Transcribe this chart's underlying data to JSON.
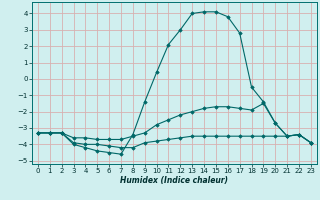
{
  "xlabel": "Humidex (Indice chaleur)",
  "background_color": "#d0efef",
  "grid_color": "#d8b0b0",
  "line_color": "#006868",
  "marker_color": "#006868",
  "xlim": [
    -0.5,
    23.5
  ],
  "ylim": [
    -5.2,
    4.7
  ],
  "xticks": [
    0,
    1,
    2,
    3,
    4,
    5,
    6,
    7,
    8,
    9,
    10,
    11,
    12,
    13,
    14,
    15,
    16,
    17,
    18,
    19,
    20,
    21,
    22,
    23
  ],
  "yticks": [
    -5,
    -4,
    -3,
    -2,
    -1,
    0,
    1,
    2,
    3,
    4
  ],
  "series": [
    {
      "x": [
        0,
        1,
        2,
        3,
        4,
        5,
        6,
        7,
        8,
        9,
        10,
        11,
        12,
        13,
        14,
        15,
        16,
        17,
        18,
        19,
        20,
        21,
        22,
        23
      ],
      "y": [
        -3.3,
        -3.3,
        -3.3,
        -4.0,
        -4.2,
        -4.4,
        -4.5,
        -4.6,
        -3.4,
        -1.4,
        0.4,
        2.1,
        3.0,
        4.0,
        4.1,
        4.1,
        3.8,
        2.8,
        -0.5,
        -1.4,
        -2.7,
        -3.5,
        -3.4,
        -3.9
      ]
    },
    {
      "x": [
        0,
        1,
        2,
        3,
        4,
        5,
        6,
        7,
        8,
        9,
        10,
        11,
        12,
        13,
        14,
        15,
        16,
        17,
        18,
        19,
        20,
        21,
        22,
        23
      ],
      "y": [
        -3.3,
        -3.3,
        -3.3,
        -3.6,
        -3.6,
        -3.7,
        -3.7,
        -3.7,
        -3.5,
        -3.3,
        -2.8,
        -2.5,
        -2.2,
        -2.0,
        -1.8,
        -1.7,
        -1.7,
        -1.8,
        -1.9,
        -1.5,
        -2.7,
        -3.5,
        -3.4,
        -3.9
      ]
    },
    {
      "x": [
        0,
        1,
        2,
        3,
        4,
        5,
        6,
        7,
        8,
        9,
        10,
        11,
        12,
        13,
        14,
        15,
        16,
        17,
        18,
        19,
        20,
        21,
        22,
        23
      ],
      "y": [
        -3.3,
        -3.3,
        -3.3,
        -3.9,
        -4.0,
        -4.0,
        -4.1,
        -4.2,
        -4.2,
        -3.9,
        -3.8,
        -3.7,
        -3.6,
        -3.5,
        -3.5,
        -3.5,
        -3.5,
        -3.5,
        -3.5,
        -3.5,
        -3.5,
        -3.5,
        -3.4,
        -3.9
      ]
    }
  ]
}
